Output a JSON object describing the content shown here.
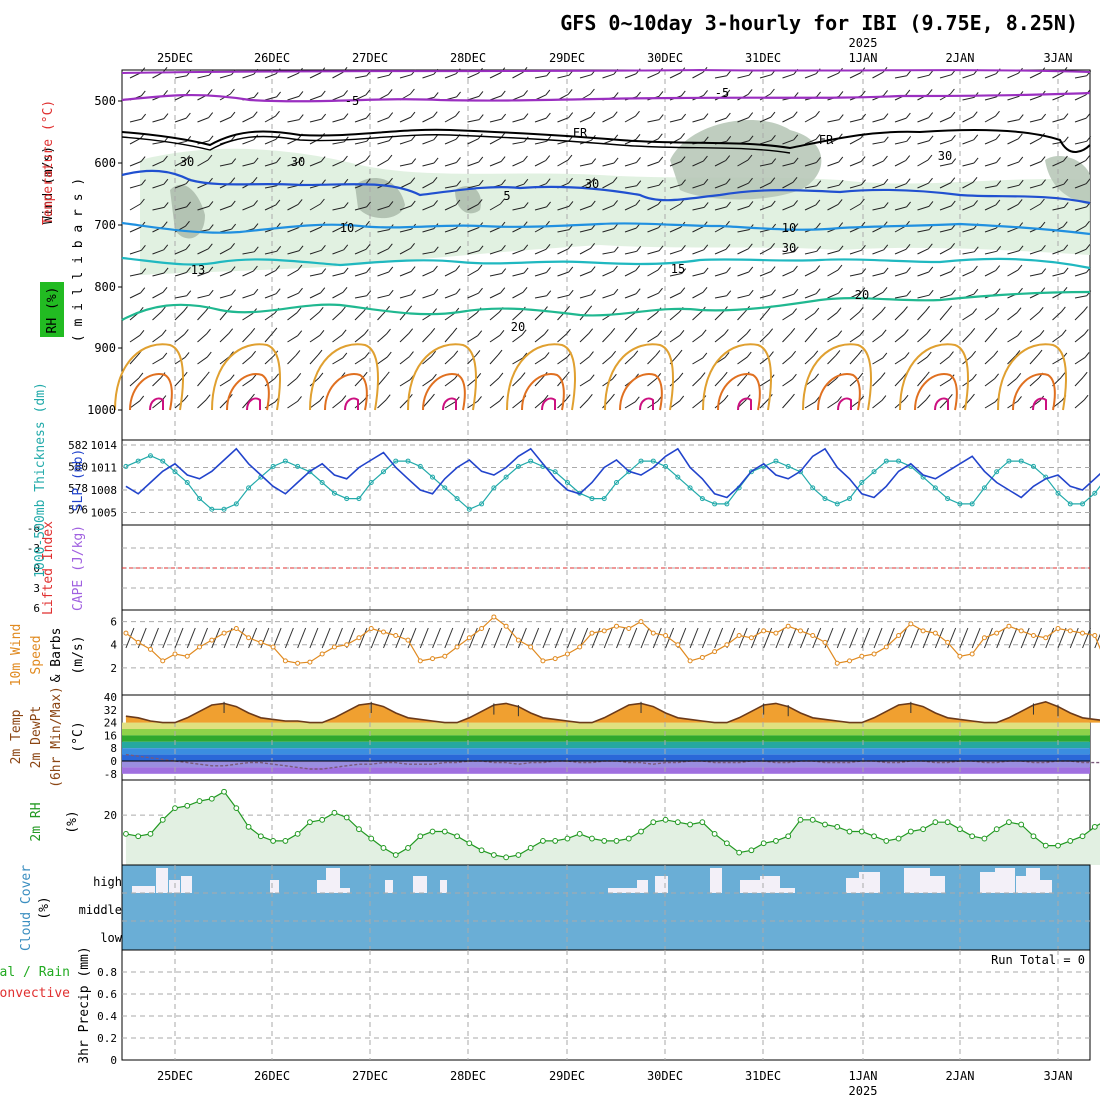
{
  "title": "GFS 0~10day 3-hourly for IBI (9.75E, 8.25N)",
  "year_label": "2025",
  "dates": [
    "25DEC",
    "26DEC",
    "27DEC",
    "28DEC",
    "29DEC",
    "30DEC",
    "31DEC",
    "1JAN",
    "2JAN",
    "3JAN"
  ],
  "colors": {
    "wind_label": "#000000",
    "temp_label": "#e03030",
    "rh_label_bg": "#22bb22",
    "slp": "#2244cc",
    "thick": "#22aaaa",
    "li": "#e03030",
    "cape": "#a060e0",
    "wind10": "#e08a20",
    "temp2m": "#8b4513",
    "rh2m": "#229922",
    "cloud": "#6aaed6",
    "precip": "#22aa22"
  },
  "panels": {
    "upper_air": {
      "ylabel_wind": "Wind (m/s)",
      "ylabel_temp": "Temperature (°C)",
      "ylabel_rh": "RH (%)",
      "ylabel_p": "( m i l l i b a r s )",
      "pressure_ticks": [
        "500",
        "600",
        "700",
        "800",
        "900",
        "1000"
      ],
      "contour_labels": [
        "-5",
        "-5",
        "FR",
        "FR",
        "5",
        "10",
        "10",
        "13",
        "15",
        "20",
        "20",
        "30",
        "30",
        "30",
        "30",
        "30"
      ]
    },
    "slp_thickness": {
      "ylabel_thick": "1000-500mb Thickness (dm)",
      "ylabel_slp": "SLP (mb)",
      "thick_ticks": [
        "582",
        "580",
        "578",
        "576"
      ],
      "slp_ticks": [
        "1014",
        "1011",
        "1008",
        "1005"
      ]
    },
    "stability": {
      "ylabel_li": "Lifted Index",
      "ylabel_cape": "CAPE (J/kg)",
      "li_ticks": [
        "-6",
        "-3",
        "0",
        "3",
        "6"
      ]
    },
    "wind10m": {
      "ylabel_a": "10m Wind",
      "ylabel_b": "Speed",
      "ylabel_c": "& Barbs",
      "ylabel_unit": "(m/s)",
      "ticks": [
        "6",
        "4",
        "2"
      ]
    },
    "temp2m": {
      "ylabel_a": "2m Temp",
      "ylabel_b": "2m DewPt",
      "ylabel_c": "(6hr Min/Max)",
      "ylabel_unit": "(°C)",
      "ticks": [
        "40",
        "32",
        "24",
        "16",
        "8",
        "0",
        "-8"
      ]
    },
    "rh2m": {
      "ylabel": "2m RH",
      "ylabel_unit": "(%)",
      "ticks": [
        "20"
      ]
    },
    "cloud": {
      "ylabel": "Cloud Cover",
      "ylabel_unit": "(%)",
      "levels": [
        "high",
        "middle",
        "low"
      ]
    },
    "precip": {
      "ylabel_a": "Total / Rain",
      "ylabel_b": "Convective",
      "ylabel_c": "3hr Precip (mm)",
      "run_total": "Run Total = 0",
      "ticks": [
        "0.8",
        "0.6",
        "0.4",
        "0.2",
        "0"
      ]
    }
  },
  "chart_data": [
    {
      "type": "line",
      "title": "1000-500mb Thickness (dm) / SLP (mb)",
      "x_unit": "3-hourly steps from 24 Dec 12Z",
      "series": [
        {
          "name": "SLP (mb)",
          "axis": "right",
          "values": [
            1008.5,
            1007.5,
            1009.0,
            1010.5,
            1011.5,
            1010.0,
            1009.5,
            1010.5,
            1012.0,
            1013.5,
            1011.5,
            1010.0,
            1008.5,
            1007.5,
            1009.0,
            1010.5,
            1011.5,
            1010.0,
            1009.5,
            1011.0,
            1012.0,
            1013.0,
            1011.0,
            1009.5,
            1008.0,
            1007.5,
            1009.5,
            1011.0,
            1012.0,
            1010.5,
            1010.0,
            1011.0,
            1012.5,
            1013.5,
            1011.5,
            1009.5,
            1008.0,
            1007.5,
            1009.0,
            1011.0,
            1012.0,
            1010.5,
            1010.0,
            1011.0,
            1012.5,
            1013.5,
            1011.0,
            1009.5,
            1007.5,
            1007.0,
            1008.5,
            1010.5,
            1011.5,
            1010.0,
            1009.5,
            1010.5,
            1012.5,
            1013.5,
            1011.0,
            1009.5,
            1007.5,
            1007.0,
            1008.5,
            1010.5,
            1011.5,
            1010.0,
            1009.5,
            1010.5,
            1011.5,
            1012.5,
            1010.5,
            1009.0,
            1008.0,
            1007.0,
            1008.5,
            1009.5,
            1010.0,
            1008.5,
            1008.0,
            1009.5,
            1011.0,
            1012.5,
            1010.5,
            1008.5,
            1006.5,
            1006.0,
            1007.5,
            1009.5,
            1010.5,
            1009.5,
            1009.0,
            1010.5,
            1012.0,
            1013.5,
            1011.5,
            1009.0,
            1006.5,
            1005.5,
            1007.5,
            1008.5,
            1009.0
          ]
        },
        {
          "name": "1000-500mb Thickness (dm)",
          "axis": "left",
          "values": [
            580.0,
            580.5,
            581.0,
            580.5,
            579.5,
            578.5,
            577.0,
            576.0,
            576.0,
            576.5,
            578.0,
            579.0,
            580.0,
            580.5,
            580.0,
            579.5,
            578.5,
            577.5,
            577.0,
            577.0,
            578.5,
            579.5,
            580.5,
            580.5,
            580.0,
            579.0,
            578.0,
            577.0,
            576.0,
            576.5,
            578.0,
            579.0,
            580.0,
            580.5,
            580.0,
            579.5,
            578.5,
            577.5,
            577.0,
            577.0,
            578.5,
            579.5,
            580.5,
            580.5,
            580.0,
            579.0,
            578.0,
            577.0,
            576.5,
            576.5,
            578.0,
            579.5,
            580.0,
            580.5,
            580.0,
            579.5,
            578.0,
            577.0,
            576.5,
            577.0,
            578.5,
            579.5,
            580.5,
            580.5,
            580.0,
            579.0,
            578.0,
            577.0,
            576.5,
            576.5,
            578.0,
            579.5,
            580.5,
            580.5,
            580.0,
            579.0,
            577.5,
            576.5,
            576.5,
            577.5,
            579.0,
            580.0,
            580.5,
            580.5,
            579.5,
            578.5,
            577.5,
            576.5,
            577.0,
            578.0,
            579.5,
            581.0,
            582.0,
            581.0,
            580.0,
            579.0,
            578.0,
            577.0,
            576.5,
            576.0,
            577.0
          ]
        }
      ],
      "ylim_left": [
        575,
        582
      ],
      "ylim_right": [
        1004,
        1014
      ]
    },
    {
      "type": "line",
      "title": "10m Wind Speed (m/s)",
      "series": [
        {
          "name": "10m Wind Speed",
          "values": [
            5.0,
            4.2,
            3.6,
            2.6,
            3.2,
            3.0,
            3.8,
            4.4,
            5.0,
            5.4,
            4.6,
            4.2,
            3.8,
            2.6,
            2.4,
            2.5,
            3.2,
            3.8,
            4.0,
            4.6,
            5.4,
            5.1,
            4.8,
            4.4,
            2.6,
            2.8,
            3.0,
            3.8,
            4.6,
            5.4,
            6.4,
            5.6,
            4.4,
            3.8,
            2.6,
            2.8,
            3.2,
            3.8,
            5.0,
            5.2,
            5.6,
            5.4,
            6.0,
            5.0,
            4.8,
            4.0,
            2.6,
            2.9,
            3.4,
            4.0,
            4.8,
            4.6,
            5.2,
            5.0,
            5.6,
            5.2,
            4.8,
            4.2,
            2.4,
            2.6,
            3.0,
            3.2,
            3.8,
            4.8,
            5.8,
            5.2,
            5.0,
            4.2,
            3.0,
            3.2,
            4.6,
            5.0,
            5.6,
            5.2,
            4.8,
            4.6,
            5.4,
            5.2,
            5.0,
            4.8,
            2.2,
            2.6,
            4.8,
            5.2,
            5.6,
            5.0,
            4.6,
            5.0,
            4.8,
            5.2,
            4.4,
            2.8,
            2.6,
            2.6,
            3.2,
            3.0,
            2.4,
            1.0,
            2.6,
            3.2,
            2.8
          ]
        }
      ],
      "ylim": [
        0,
        7
      ]
    },
    {
      "type": "area",
      "title": "2m Temp / 2m DewPt (°C)",
      "series": [
        {
          "name": "2m Temp",
          "values": [
            28,
            27,
            25,
            24,
            24,
            27,
            31,
            35,
            36,
            34,
            30,
            27,
            26,
            25,
            25,
            24,
            24,
            27,
            31,
            35,
            36,
            34,
            30,
            27,
            26,
            25,
            24,
            24,
            27,
            31,
            35,
            36,
            34,
            30,
            27,
            26,
            25,
            24,
            24,
            27,
            31,
            35,
            36,
            34,
            30,
            27,
            26,
            25,
            24,
            24,
            27,
            31,
            35,
            36,
            34,
            30,
            27,
            26,
            25,
            24,
            24,
            27,
            31,
            35,
            36,
            34,
            30,
            27,
            26,
            25,
            24,
            24,
            27,
            31,
            35,
            37,
            34,
            30,
            27,
            26,
            25,
            24,
            24,
            27,
            31,
            35,
            37,
            34,
            30,
            27,
            26,
            25,
            24,
            24,
            27,
            31,
            35,
            38,
            34,
            29,
            25,
            22,
            21
          ]
        },
        {
          "name": "2m DewPt",
          "values": [
            4,
            3,
            2,
            1,
            0,
            -1,
            -2,
            -3,
            -3,
            -2,
            -1,
            -1,
            -2,
            -3,
            -4,
            -5,
            -5,
            -4,
            -3,
            -2,
            -2,
            -1,
            -1,
            -2,
            -2,
            -2,
            -1,
            -1,
            0,
            0,
            -1,
            -1,
            -2,
            -1,
            -1,
            0,
            0,
            -1,
            -1,
            0,
            0,
            -1,
            -1,
            -2,
            -1,
            -1,
            0,
            0,
            -1,
            -1,
            -1,
            0,
            0,
            -1,
            -1,
            0,
            0,
            -1,
            -1,
            -1,
            0,
            0,
            -1,
            -1,
            0,
            0,
            -1,
            -1,
            0,
            0,
            -1,
            -1,
            0,
            0,
            -1,
            -1,
            0,
            0,
            -1,
            -1,
            -1,
            0,
            0,
            -1,
            -1,
            0,
            0,
            -1,
            -1,
            0,
            0,
            -1,
            -1,
            0,
            0,
            0,
            -1,
            -1,
            -1,
            -1,
            -1
          ]
        }
      ],
      "ylim": [
        -10,
        40
      ]
    },
    {
      "type": "line",
      "title": "2m RH (%)",
      "series": [
        {
          "name": "2m RH",
          "values": [
            12,
            11,
            12,
            18,
            23,
            24,
            26,
            27,
            30,
            23,
            15,
            11,
            9,
            9,
            12,
            17,
            18,
            21,
            19,
            14,
            10,
            6,
            3,
            6,
            11,
            13,
            13,
            11,
            8,
            5,
            3,
            2,
            3,
            6,
            9,
            9,
            10,
            12,
            10,
            9,
            9,
            10,
            13,
            17,
            18,
            17,
            16,
            17,
            12,
            8,
            4,
            5,
            8,
            9,
            11,
            18,
            18,
            16,
            15,
            13,
            13,
            11,
            9,
            10,
            13,
            14,
            17,
            17,
            14,
            11,
            10,
            14,
            17,
            16,
            11,
            7,
            7,
            9,
            11,
            15,
            18,
            18,
            14,
            12,
            11,
            18,
            24,
            21,
            14,
            9,
            7,
            5,
            6,
            10,
            14,
            18,
            21,
            22,
            22,
            25,
            28
          ]
        }
      ],
      "ylim": [
        0,
        35
      ]
    },
    {
      "type": "bar",
      "title": "Cloud Cover (%)",
      "categories": [
        "high",
        "middle",
        "low"
      ],
      "values": [
        0,
        0,
        0
      ]
    },
    {
      "type": "bar",
      "title": "3hr Precip (mm)",
      "values": [],
      "ylim": [
        0,
        1
      ]
    }
  ]
}
